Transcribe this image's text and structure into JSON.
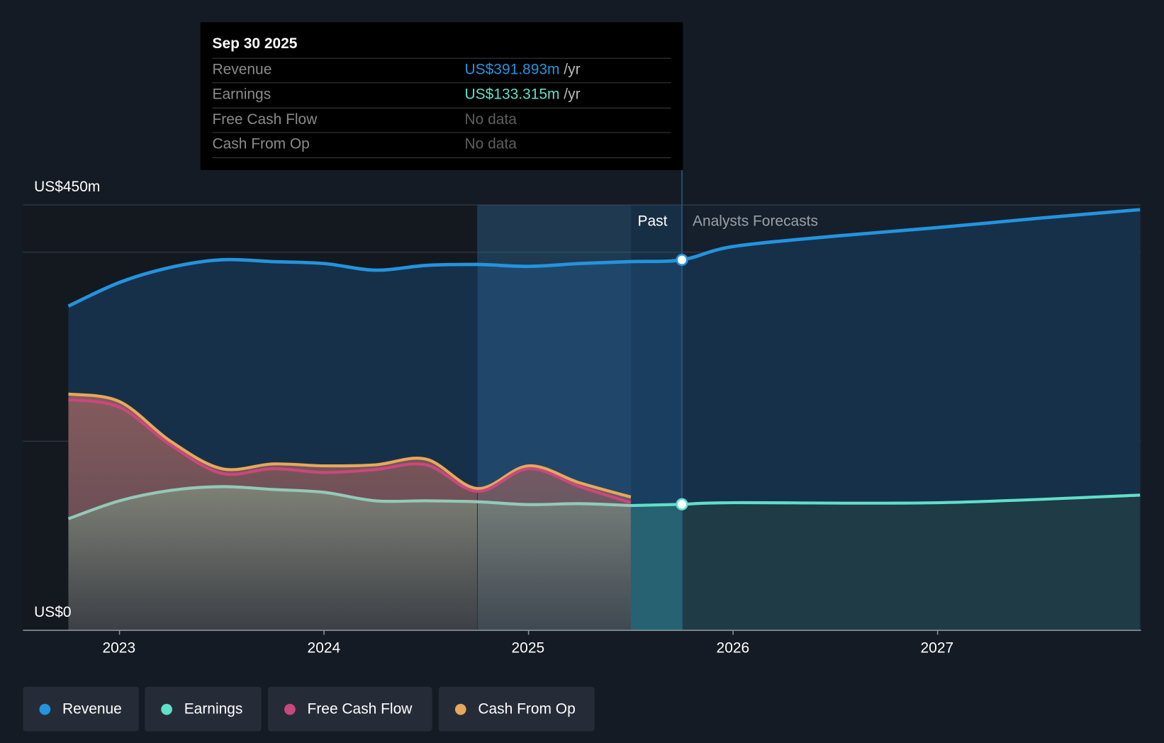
{
  "tooltip": {
    "date": "Sep 30 2025",
    "rows": [
      {
        "label": "Revenue",
        "value": "US$391.893m",
        "unit": "/yr"
      },
      {
        "label": "Earnings",
        "value": "US$133.315m",
        "unit": "/yr"
      },
      {
        "label": "Free Cash Flow",
        "value": "No data"
      },
      {
        "label": "Cash From Op",
        "value": "No data"
      }
    ]
  },
  "labels": {
    "past": "Past",
    "forecast": "Analysts Forecasts"
  },
  "legend": [
    {
      "label": "Revenue",
      "color": "#2394df"
    },
    {
      "label": "Earnings",
      "color": "#5fe0c8"
    },
    {
      "label": "Free Cash Flow",
      "color": "#c9487e"
    },
    {
      "label": "Cash From Op",
      "color": "#e6a85a"
    }
  ],
  "chart_data": {
    "type": "line",
    "title": "",
    "ylabel": "",
    "ylim": [
      0,
      450
    ],
    "xlim": [
      2022.75,
      2027.99
    ],
    "y_tick_labels": [
      "US$0",
      "US$450m"
    ],
    "x_tick_labels": [
      "2023",
      "2024",
      "2025",
      "2026",
      "2027"
    ],
    "x_ticks": [
      2023,
      2024,
      2025,
      2026,
      2027
    ],
    "gridlines": [
      200,
      400,
      450
    ],
    "past_end": 2025.75,
    "highlight_start": 2024.75,
    "series": [
      {
        "name": "Revenue",
        "color": "#2394df",
        "x": [
          2022.75,
          2023,
          2023.25,
          2023.5,
          2023.75,
          2024,
          2024.25,
          2024.5,
          2024.75,
          2025,
          2025.25,
          2025.5,
          2025.75,
          2026,
          2026.5,
          2027,
          2027.5,
          2027.99
        ],
        "values": [
          343,
          368,
          384,
          392,
          390,
          388,
          381,
          386,
          387,
          385,
          388,
          390,
          391.9,
          406,
          417,
          426,
          436,
          445
        ]
      },
      {
        "name": "Earnings",
        "color": "#5fe0c8",
        "x": [
          2022.75,
          2023,
          2023.25,
          2023.5,
          2023.75,
          2024,
          2024.25,
          2024.5,
          2024.75,
          2025,
          2025.25,
          2025.5,
          2025.75,
          2026,
          2027,
          2027.99
        ],
        "values": [
          118,
          137,
          148,
          152,
          149,
          146,
          137,
          137,
          136,
          133,
          134,
          132,
          133.3,
          135,
          135,
          143
        ]
      },
      {
        "name": "Free Cash Flow",
        "color": "#c9487e",
        "x": [
          2022.75,
          2023,
          2023.25,
          2023.5,
          2023.75,
          2024,
          2024.25,
          2024.5,
          2024.75,
          2025,
          2025.25,
          2025.5
        ],
        "values": [
          244,
          236,
          196,
          166,
          171,
          167,
          170,
          175,
          147,
          171,
          152,
          135
        ]
      },
      {
        "name": "Cash From Op",
        "color": "#e6a85a",
        "x": [
          2022.75,
          2023,
          2023.25,
          2023.5,
          2023.75,
          2024,
          2024.25,
          2024.5,
          2024.75,
          2025,
          2025.25,
          2025.5
        ],
        "values": [
          250,
          242,
          200,
          171,
          176,
          174,
          175,
          181,
          150,
          174,
          156,
          141
        ]
      }
    ]
  }
}
